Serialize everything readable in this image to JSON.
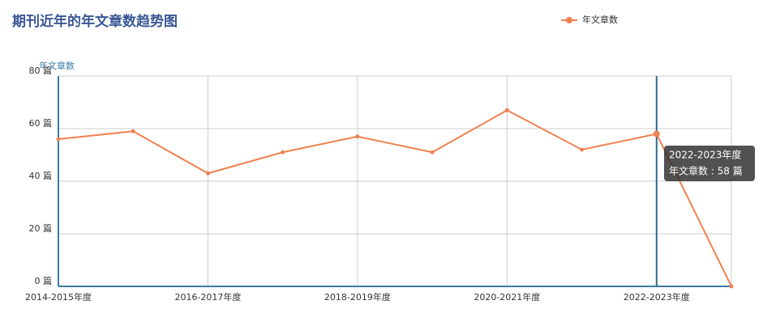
{
  "chart_data": {
    "type": "line",
    "title": "期刊近年的年文章数趋势图",
    "y_label": "年文章数",
    "categories": [
      "2014-2015年度",
      null,
      "2016-2017年度",
      null,
      "2018-2019年度",
      null,
      "2020-2021年度",
      null,
      "2022-2023年度",
      null
    ],
    "series": [
      {
        "name": "年文章数",
        "color": "#f08150",
        "values": [
          56,
          59,
          43,
          51,
          57,
          51,
          67,
          52,
          58,
          0
        ]
      }
    ],
    "ylim": [
      0,
      80
    ],
    "yticks": [
      {
        "value": 0,
        "label": "0 篇"
      },
      {
        "value": 20,
        "label": "20 篇"
      },
      {
        "value": 40,
        "label": "40 篇"
      },
      {
        "value": 60,
        "label": "60 篇"
      },
      {
        "value": 80,
        "label": "80 篇"
      }
    ],
    "grid": true,
    "tooltip": {
      "title": "2022-2023年度",
      "label": "年文章数 : 58 篇"
    }
  }
}
